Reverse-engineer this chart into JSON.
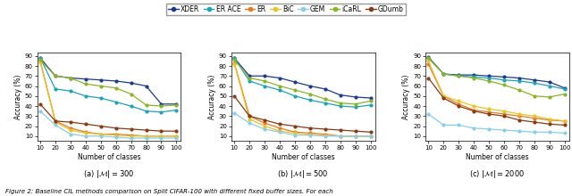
{
  "x": [
    10,
    20,
    30,
    40,
    50,
    60,
    70,
    80,
    90,
    100
  ],
  "methods": [
    "XDER",
    "ER ACE",
    "ER",
    "BiC",
    "GEM",
    "iCaRL",
    "GDumb"
  ],
  "data_300": {
    "XDER": [
      88,
      70,
      68,
      67,
      66,
      65,
      63,
      60,
      42,
      42
    ],
    "ER ACE": [
      88,
      57,
      55,
      50,
      48,
      44,
      40,
      35,
      34,
      36
    ],
    "ER": [
      85,
      25,
      18,
      14,
      12,
      12,
      11,
      10,
      10,
      10
    ],
    "BiC": [
      84,
      24,
      16,
      13,
      12,
      11,
      10,
      10,
      10,
      10
    ],
    "GEM": [
      35,
      21,
      12,
      10,
      10,
      9,
      8,
      8,
      8,
      8
    ],
    "iCaRL": [
      86,
      70,
      68,
      62,
      60,
      58,
      52,
      41,
      40,
      41
    ],
    "GDumb": [
      42,
      25,
      24,
      22,
      20,
      18,
      17,
      16,
      15,
      15
    ]
  },
  "data_500": {
    "XDER": [
      88,
      70,
      70,
      68,
      64,
      60,
      57,
      51,
      49,
      48
    ],
    "ER ACE": [
      88,
      65,
      60,
      56,
      50,
      46,
      43,
      40,
      39,
      41
    ],
    "ER": [
      83,
      30,
      23,
      18,
      14,
      13,
      12,
      10,
      10,
      10
    ],
    "BiC": [
      82,
      27,
      20,
      15,
      13,
      12,
      11,
      10,
      10,
      10
    ],
    "GEM": [
      33,
      23,
      17,
      14,
      11,
      11,
      10,
      10,
      10,
      10
    ],
    "iCaRL": [
      86,
      68,
      65,
      60,
      56,
      52,
      47,
      43,
      42,
      45
    ],
    "GDumb": [
      50,
      30,
      26,
      22,
      20,
      18,
      17,
      16,
      15,
      14
    ]
  },
  "data_2000": {
    "XDER": [
      89,
      72,
      71,
      71,
      70,
      69,
      68,
      66,
      64,
      58
    ],
    "ER ACE": [
      88,
      72,
      70,
      69,
      68,
      66,
      65,
      63,
      60,
      57
    ],
    "ER": [
      82,
      50,
      42,
      36,
      34,
      32,
      30,
      28,
      26,
      25
    ],
    "BiC": [
      85,
      50,
      45,
      40,
      37,
      35,
      32,
      30,
      27,
      25
    ],
    "GEM": [
      32,
      21,
      21,
      18,
      17,
      16,
      15,
      14,
      14,
      13
    ],
    "iCaRL": [
      88,
      72,
      70,
      68,
      65,
      61,
      56,
      50,
      49,
      52
    ],
    "GDumb": [
      68,
      48,
      40,
      35,
      32,
      30,
      26,
      24,
      22,
      21
    ]
  },
  "colors": {
    "XDER": "#1a3a8f",
    "ER ACE": "#17a5b8",
    "ER": "#e87820",
    "BiC": "#e8c520",
    "GEM": "#87ceeb",
    "iCaRL": "#8ab520",
    "GDumb": "#8b3a10"
  },
  "subtitles": [
    "(a) $|\\mathcal{M}| = 300$",
    "(b) $|\\mathcal{M}| = 500$",
    "(c) $|\\mathcal{M}| = 2000$"
  ],
  "ylabel": "Accuracy (%)",
  "xlabel": "Number of classes",
  "yticks": [
    10,
    20,
    30,
    40,
    50,
    60,
    70,
    80,
    90
  ],
  "xticks": [
    10,
    20,
    30,
    40,
    50,
    60,
    70,
    80,
    90,
    100
  ],
  "caption": "Figure 2: Baseline CIL methods comparison on Split CIFAR-100 with different fixed buffer sizes. For each"
}
